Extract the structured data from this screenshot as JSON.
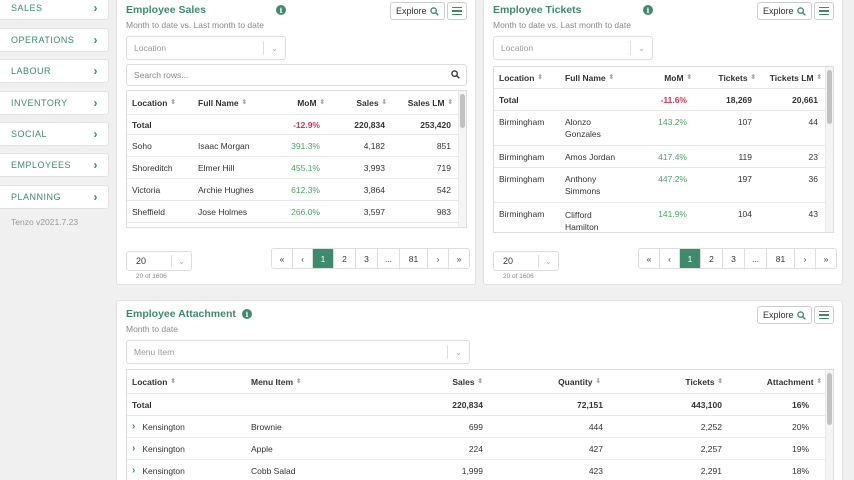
{
  "sidebar": {
    "items": [
      {
        "label": "SALES"
      },
      {
        "label": "OPERATIONS"
      },
      {
        "label": "LABOUR"
      },
      {
        "label": "INVENTORY"
      },
      {
        "label": "SOCIAL"
      },
      {
        "label": "EMPLOYEES"
      },
      {
        "label": "PLANNING"
      }
    ],
    "version": "Tenzo v2021.7.23"
  },
  "common": {
    "explore": "Explore",
    "info": "i",
    "chevron": "›",
    "caret": "⌄",
    "sort": "⬍",
    "sort_desc": "⬇"
  },
  "sales": {
    "title": "Employee Sales",
    "subtitle": "Month to date vs. Last month to date",
    "location_placeholder": "Location",
    "search_placeholder": "Search rows...",
    "columns": [
      "Location",
      "Full Name",
      "MoM",
      "Sales",
      "Sales LM"
    ],
    "total": {
      "label": "Total",
      "mom": "-12.9%",
      "sales": "220,834",
      "sales_lm": "253,420"
    },
    "rows": [
      {
        "location": "Soho",
        "name": "Isaac Morgan",
        "mom": "391.3%",
        "sales": "4,182",
        "sales_lm": "851"
      },
      {
        "location": "Shoreditch",
        "name": "Elmer Hill",
        "mom": "455.1%",
        "sales": "3,993",
        "sales_lm": "719"
      },
      {
        "location": "Victoria",
        "name": "Archie Hughes",
        "mom": "612.3%",
        "sales": "3,864",
        "sales_lm": "542"
      },
      {
        "location": "Sheffield",
        "name": "Jose Holmes",
        "mom": "266.0%",
        "sales": "3,597",
        "sales_lm": "983"
      }
    ],
    "page_size": "20",
    "count": "20 of 1606",
    "pages": [
      "«",
      "‹",
      "1",
      "2",
      "3",
      "...",
      "81",
      "›",
      "»"
    ]
  },
  "tickets": {
    "title": "Employee Tickets",
    "subtitle": "Month to date vs. Last month to date",
    "location_placeholder": "Location",
    "columns": [
      "Location",
      "Full Name",
      "MoM",
      "Tickets",
      "Tickets LM"
    ],
    "total": {
      "label": "Total",
      "mom": "-11.6%",
      "tickets": "18,269",
      "tickets_lm": "20,661"
    },
    "rows": [
      {
        "location": "Birmingham",
        "name": "Alonzo Gonzales",
        "mom": "143.2%",
        "tickets": "107",
        "tickets_lm": "44"
      },
      {
        "location": "Birmingham",
        "name": "Amos Jordan",
        "mom": "417.4%",
        "tickets": "119",
        "tickets_lm": "23"
      },
      {
        "location": "Birmingham",
        "name": "Anthony Simmons",
        "mom": "447.2%",
        "tickets": "197",
        "tickets_lm": "36"
      },
      {
        "location": "Birmingham",
        "name": "Clifford Hamilton",
        "mom": "141.9%",
        "tickets": "104",
        "tickets_lm": "43"
      }
    ],
    "page_size": "20",
    "count": "20 of 1606",
    "pages": [
      "«",
      "‹",
      "1",
      "2",
      "3",
      "...",
      "81",
      "›",
      "»"
    ]
  },
  "attachment": {
    "title": "Employee Attachment",
    "subtitle": "Month to date",
    "menu_placeholder": "Menu Item",
    "columns": [
      "Location",
      "Menu Item",
      "Sales",
      "Quantity",
      "Tickets",
      "Attachment"
    ],
    "total": {
      "label": "Total",
      "sales": "220,834",
      "quantity": "72,151",
      "tickets": "443,100",
      "attachment": "16%"
    },
    "rows": [
      {
        "location": "Kensington",
        "item": "Brownie",
        "sales": "699",
        "quantity": "444",
        "tickets": "2,252",
        "attachment": "20%"
      },
      {
        "location": "Kensington",
        "item": "Apple",
        "sales": "224",
        "quantity": "427",
        "tickets": "2,257",
        "attachment": "19%"
      },
      {
        "location": "Kensington",
        "item": "Cobb Salad",
        "sales": "1,999",
        "quantity": "423",
        "tickets": "2,291",
        "attachment": "18%"
      }
    ]
  },
  "colors": {
    "accent": "#3d8b6b",
    "positive": "#48a463",
    "negative": "#d9344a"
  }
}
